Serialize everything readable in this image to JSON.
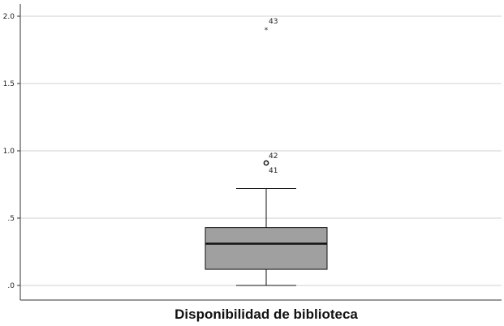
{
  "chart_data": {
    "type": "boxplot",
    "title": "",
    "xlabel": "",
    "ylabel": "",
    "ylim": [
      -0.1,
      2.05
    ],
    "yticks": [
      0.0,
      0.5,
      1.0,
      1.5,
      2.0
    ],
    "ytick_labels": [
      ".0",
      ".5",
      "1.0",
      "1.5",
      "2.0"
    ],
    "grid": true,
    "categories": [
      "Disponibilidad de biblioteca"
    ],
    "series": [
      {
        "whisker_low": 0.0,
        "q1": 0.12,
        "median": 0.31,
        "q3": 0.43,
        "whisker_high": 0.72,
        "outliers": [
          {
            "label": "42",
            "value": 0.91,
            "marker": "circle"
          },
          {
            "label": "41",
            "value": 0.91,
            "marker": "circle"
          },
          {
            "label": "43",
            "value": 1.91,
            "marker": "star"
          }
        ]
      }
    ],
    "colors": {
      "box": "#a0a0a0",
      "grid": "#d0d0d0",
      "lines": "#111111"
    }
  }
}
